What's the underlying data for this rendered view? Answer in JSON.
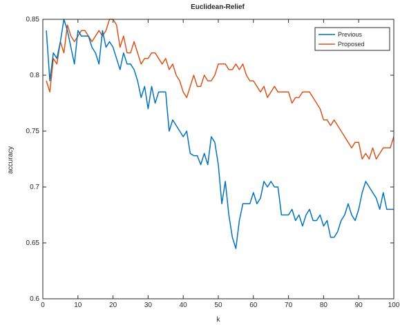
{
  "chart_data": {
    "type": "line",
    "title": "Euclidean-Relief",
    "xlabel": "k",
    "ylabel": "accuracy",
    "xlim": [
      0,
      100
    ],
    "ylim": [
      0.6,
      0.85
    ],
    "xticks": [
      "0",
      "10",
      "20",
      "30",
      "40",
      "50",
      "60",
      "70",
      "80",
      "90",
      "100"
    ],
    "yticks": [
      "0.6",
      "0.65",
      "0.7",
      "0.75",
      "0.8",
      "0.85"
    ],
    "grid": false,
    "legend_position": "top-right",
    "x": [
      1,
      2,
      3,
      4,
      5,
      6,
      7,
      8,
      9,
      10,
      11,
      12,
      13,
      14,
      15,
      16,
      17,
      18,
      19,
      20,
      21,
      22,
      23,
      24,
      25,
      26,
      27,
      28,
      29,
      30,
      31,
      32,
      33,
      34,
      35,
      36,
      37,
      38,
      39,
      40,
      41,
      42,
      43,
      44,
      45,
      46,
      47,
      48,
      49,
      50,
      51,
      52,
      53,
      54,
      55,
      56,
      57,
      58,
      59,
      60,
      61,
      62,
      63,
      64,
      65,
      66,
      67,
      68,
      69,
      70,
      71,
      72,
      73,
      74,
      75,
      76,
      77,
      78,
      79,
      80,
      81,
      82,
      83,
      84,
      85,
      86,
      87,
      88,
      89,
      90,
      91,
      92,
      93,
      94,
      95,
      96,
      97,
      98,
      99,
      100
    ],
    "series": [
      {
        "name": "Previous",
        "color": "#0072BD",
        "values": [
          0.84,
          0.795,
          0.82,
          0.815,
          0.83,
          0.85,
          0.84,
          0.825,
          0.81,
          0.84,
          0.835,
          0.835,
          0.835,
          0.825,
          0.82,
          0.81,
          0.84,
          0.825,
          0.83,
          0.825,
          0.815,
          0.805,
          0.82,
          0.81,
          0.81,
          0.805,
          0.795,
          0.78,
          0.79,
          0.77,
          0.79,
          0.775,
          0.785,
          0.785,
          0.785,
          0.75,
          0.76,
          0.755,
          0.75,
          0.745,
          0.75,
          0.73,
          0.728,
          0.728,
          0.72,
          0.73,
          0.72,
          0.745,
          0.74,
          0.72,
          0.685,
          0.705,
          0.675,
          0.655,
          0.645,
          0.67,
          0.685,
          0.685,
          0.685,
          0.695,
          0.685,
          0.69,
          0.705,
          0.7,
          0.705,
          0.7,
          0.7,
          0.675,
          0.675,
          0.675,
          0.68,
          0.67,
          0.675,
          0.665,
          0.675,
          0.68,
          0.67,
          0.67,
          0.675,
          0.665,
          0.67,
          0.655,
          0.655,
          0.66,
          0.67,
          0.675,
          0.685,
          0.675,
          0.67,
          0.68,
          0.695,
          0.705,
          0.7,
          0.695,
          0.69,
          0.68,
          0.695,
          0.68,
          0.68,
          0.68
        ]
      },
      {
        "name": "Proposed",
        "color": "#D95319",
        "values": [
          0.795,
          0.785,
          0.815,
          0.81,
          0.83,
          0.82,
          0.845,
          0.835,
          0.83,
          0.835,
          0.84,
          0.84,
          0.835,
          0.83,
          0.835,
          0.84,
          0.835,
          0.84,
          0.85,
          0.85,
          0.845,
          0.825,
          0.835,
          0.82,
          0.82,
          0.83,
          0.82,
          0.81,
          0.815,
          0.815,
          0.82,
          0.82,
          0.815,
          0.81,
          0.815,
          0.805,
          0.81,
          0.8,
          0.795,
          0.785,
          0.78,
          0.79,
          0.8,
          0.79,
          0.79,
          0.8,
          0.795,
          0.795,
          0.8,
          0.81,
          0.81,
          0.81,
          0.805,
          0.805,
          0.81,
          0.805,
          0.81,
          0.8,
          0.795,
          0.795,
          0.79,
          0.785,
          0.79,
          0.78,
          0.785,
          0.79,
          0.785,
          0.785,
          0.785,
          0.785,
          0.775,
          0.78,
          0.78,
          0.785,
          0.785,
          0.785,
          0.78,
          0.775,
          0.77,
          0.76,
          0.76,
          0.755,
          0.76,
          0.755,
          0.75,
          0.745,
          0.74,
          0.735,
          0.74,
          0.74,
          0.725,
          0.73,
          0.725,
          0.735,
          0.725,
          0.73,
          0.735,
          0.735,
          0.735,
          0.745
        ]
      }
    ]
  }
}
